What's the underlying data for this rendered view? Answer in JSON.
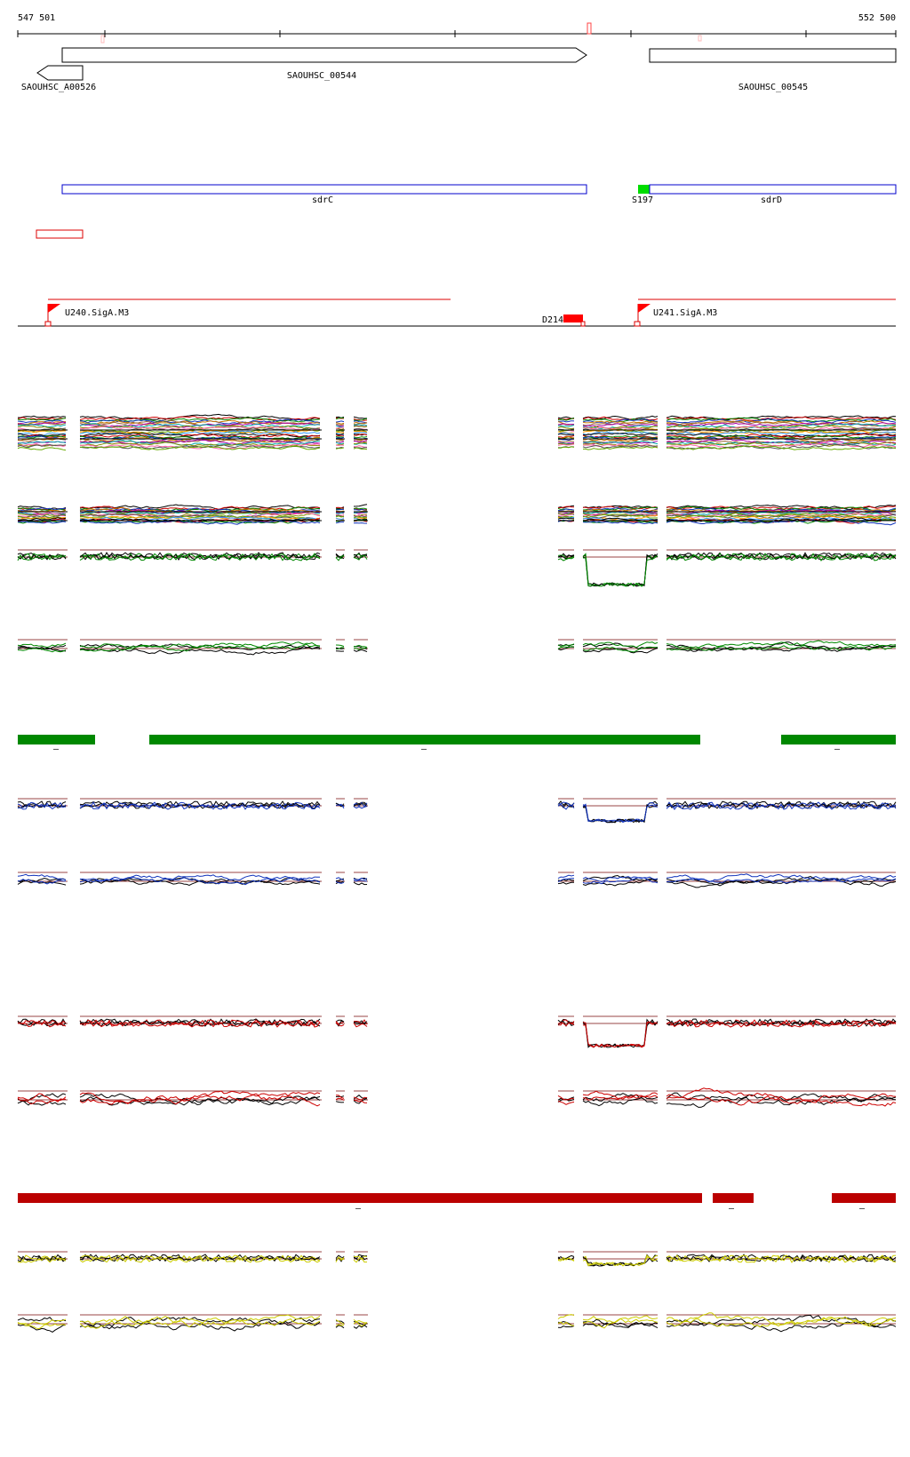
{
  "coords": {
    "start": "547 501",
    "end": "552 500"
  },
  "genes": [
    {
      "id": "saouhsc-00544",
      "label": "SAOUHSC_00544"
    },
    {
      "id": "saouhsc-a00526",
      "label": "SAOUHSC_A00526"
    },
    {
      "id": "saouhsc-00545",
      "label": "SAOUHSC_00545"
    }
  ],
  "features": [
    {
      "id": "sdrc",
      "label": "sdrC",
      "color": "#0000cc"
    },
    {
      "id": "sdrd",
      "label": "sdrD",
      "color": "#0000cc"
    },
    {
      "id": "s197",
      "label": "S197",
      "color": "#00dd00"
    }
  ],
  "promoters": [
    {
      "id": "u240",
      "label": "U240.SigA.M3",
      "color": "#ff0000"
    },
    {
      "id": "u241",
      "label": "U241.SigA.M3",
      "color": "#ff0000"
    }
  ],
  "terminator": {
    "label": "D214",
    "color": "#ff0000"
  },
  "colors": {
    "green_seg": "#008800",
    "darkred_seg": "#bb0000",
    "thresh": "#994444",
    "blue": "#1133bb",
    "green": "#008800",
    "red": "#cc0000",
    "yellow": "#cccc00",
    "black": "#000000"
  },
  "segment_marks": [
    "–"
  ]
}
